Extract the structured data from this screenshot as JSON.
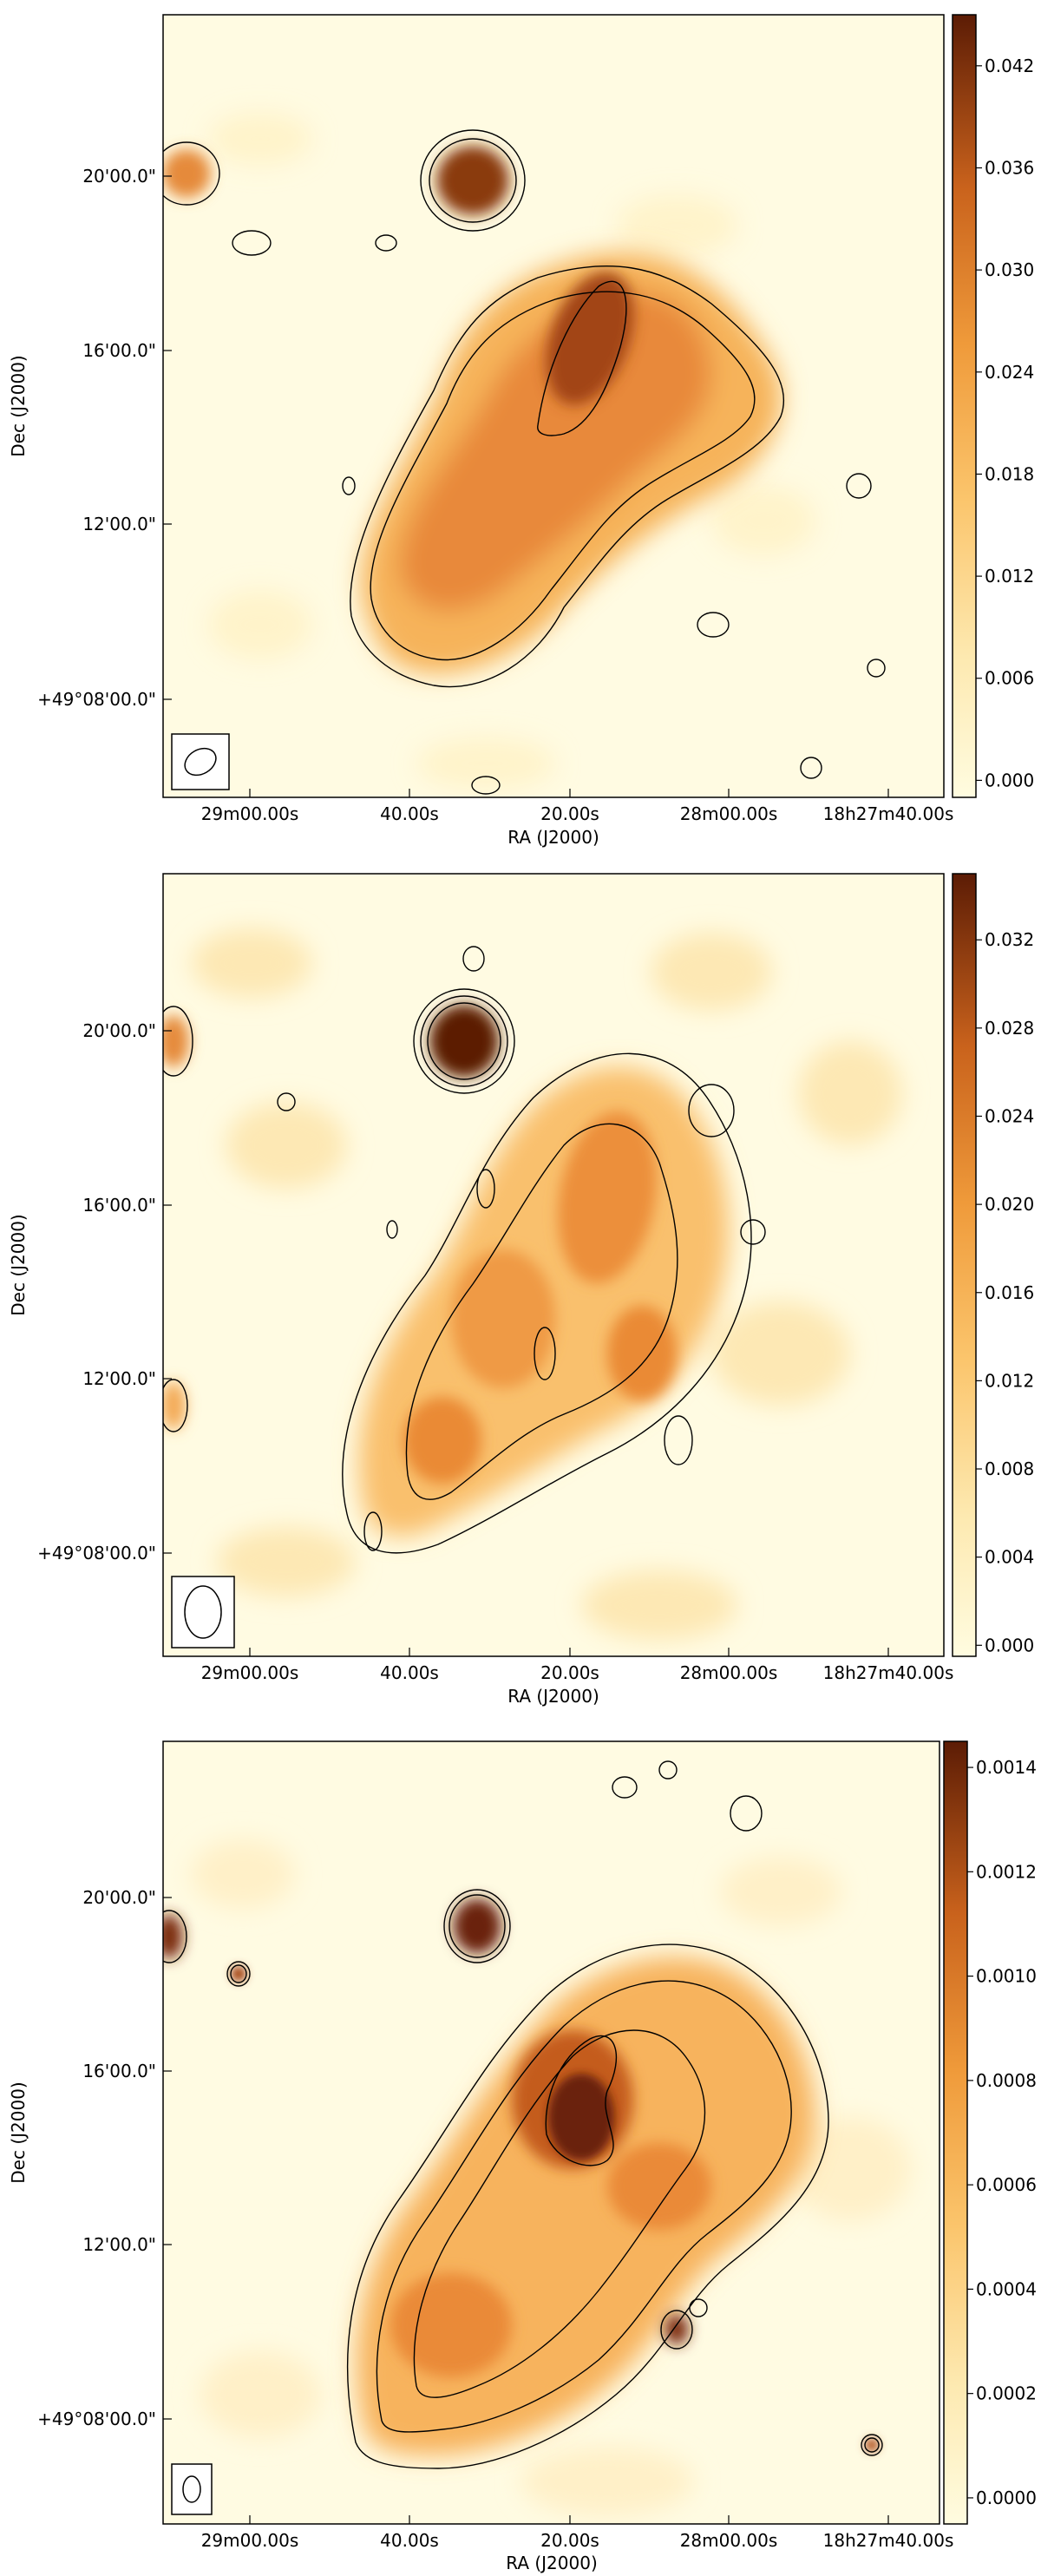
{
  "chart_data": [
    {
      "type": "heatmap",
      "panel_index": 1,
      "colormap": "orange-brown",
      "colors": [
        "#fffce0",
        "#fdd98c",
        "#f4a243",
        "#d96f22",
        "#9b3c0e",
        "#5c1c05"
      ],
      "xlabel": "RA (J2000)",
      "ylabel": "Dec (J2000)",
      "x_ticks": [
        "29m00.00s",
        "40.00s",
        "20.00s",
        "28m00.00s",
        "18h27m40.00s"
      ],
      "y_ticks": [
        "20'00.0\"",
        "16'00.0\"",
        "12'00.0\"",
        "+49°08'00.0\""
      ],
      "colorbar_ticks": [
        "0.042",
        "0.036",
        "0.030",
        "0.024",
        "0.018",
        "0.012",
        "0.006",
        "0.000"
      ],
      "colorbar_range": [
        -0.001,
        0.045
      ],
      "grid": false,
      "beam_shape": "ellipse",
      "contours": true
    },
    {
      "type": "heatmap",
      "panel_index": 2,
      "colormap": "orange-brown",
      "colors": [
        "#fffce0",
        "#fdd98c",
        "#f4a243",
        "#d96f22",
        "#9b3c0e",
        "#5c1c05"
      ],
      "xlabel": "RA (J2000)",
      "ylabel": "Dec (J2000)",
      "x_ticks": [
        "29m00.00s",
        "40.00s",
        "20.00s",
        "28m00.00s",
        "18h27m40.00s"
      ],
      "y_ticks": [
        "20'00.0\"",
        "16'00.0\"",
        "12'00.0\"",
        "+49°08'00.0\""
      ],
      "colorbar_ticks": [
        "0.032",
        "0.028",
        "0.024",
        "0.020",
        "0.016",
        "0.012",
        "0.008",
        "0.004",
        "0.000"
      ],
      "colorbar_range": [
        -0.0005,
        0.035
      ],
      "grid": false,
      "beam_shape": "ellipse",
      "contours": true
    },
    {
      "type": "heatmap",
      "panel_index": 3,
      "colormap": "orange-brown",
      "colors": [
        "#fffce0",
        "#fdd98c",
        "#f4a243",
        "#d96f22",
        "#9b3c0e",
        "#5c1c05"
      ],
      "xlabel": "RA (J2000)",
      "ylabel": "Dec (J2000)",
      "x_ticks": [
        "29m00.00s",
        "40.00s",
        "20.00s",
        "28m00.00s",
        "18h27m40.00s"
      ],
      "y_ticks": [
        "20'00.0\"",
        "16'00.0\"",
        "12'00.0\"",
        "+49°08'00.0\""
      ],
      "colorbar_ticks": [
        "0.0014",
        "0.0012",
        "0.0010",
        "0.0008",
        "0.0006",
        "0.0004",
        "0.0002",
        "0.0000"
      ],
      "colorbar_range": [
        -5e-05,
        0.00145
      ],
      "grid": false,
      "beam_shape": "ellipse",
      "contours": true
    }
  ]
}
